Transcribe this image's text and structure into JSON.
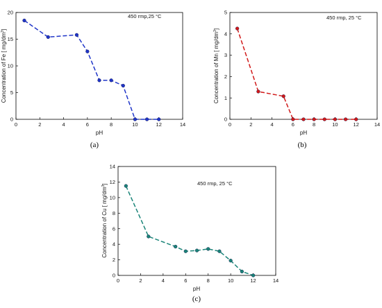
{
  "chart_data": [
    {
      "type": "line",
      "panel": "a",
      "caption": "(a)",
      "annotation": "450 rmp,25 °C",
      "xlabel": "pH",
      "ylabel_main": "Concentration of Fe [ mg/dm",
      "ylabel_sup": "3",
      "ylabel_end": "]",
      "xlim": [
        0,
        14
      ],
      "ylim": [
        0,
        20
      ],
      "xticks": [
        "0",
        "2",
        "4",
        "6",
        "8",
        "10",
        "12",
        "14"
      ],
      "yticks": [
        "0",
        "5",
        "10",
        "15",
        "20"
      ],
      "color": "#1f35c8",
      "series": [
        {
          "x": [
            0.7,
            2.7,
            5.1,
            6.0,
            7.0,
            8.0,
            9.0,
            10.0,
            11.0,
            12.0
          ],
          "y": [
            18.5,
            15.4,
            15.8,
            12.7,
            7.3,
            7.3,
            6.3,
            0.0,
            0.0,
            0.0
          ]
        }
      ]
    },
    {
      "type": "line",
      "panel": "b",
      "caption": "(b)",
      "annotation": "450 rmp, 25 °C",
      "xlabel": "pH",
      "ylabel_main": "Concentration of Mn [ mg/dm",
      "ylabel_sup": "3",
      "ylabel_end": "]",
      "xlim": [
        0,
        14
      ],
      "ylim": [
        0,
        5
      ],
      "xticks": [
        "0",
        "2",
        "4",
        "6",
        "8",
        "10",
        "12",
        "14"
      ],
      "yticks": [
        "0",
        "1",
        "2",
        "3",
        "4",
        "5"
      ],
      "color": "#d11919",
      "series": [
        {
          "x": [
            0.7,
            2.7,
            5.1,
            6.0,
            7.0,
            8.0,
            9.0,
            10.0,
            11.0,
            12.0
          ],
          "y": [
            4.25,
            1.3,
            1.08,
            0.0,
            0.0,
            0.0,
            0.0,
            0.0,
            0.0,
            0.0
          ]
        }
      ]
    },
    {
      "type": "line",
      "panel": "c",
      "caption": "(c)",
      "annotation": "450 rmp, 25 °C",
      "xlabel": "pH",
      "ylabel_main": "Concentration of Cu [ mg/dm",
      "ylabel_sup": "3",
      "ylabel_end": "]",
      "xlim": [
        0,
        14
      ],
      "ylim": [
        0,
        14
      ],
      "xticks": [
        "0",
        "2",
        "4",
        "6",
        "8",
        "10",
        "12",
        "14"
      ],
      "yticks": [
        "0",
        "2",
        "4",
        "6",
        "8",
        "10",
        "12",
        "14"
      ],
      "color": "#1a8478",
      "series": [
        {
          "x": [
            0.7,
            2.7,
            5.1,
            6.0,
            7.0,
            8.0,
            9.0,
            10.0,
            11.0,
            12.0
          ],
          "y": [
            11.5,
            5.0,
            3.7,
            3.1,
            3.2,
            3.4,
            3.1,
            1.9,
            0.5,
            0.0
          ]
        }
      ]
    }
  ]
}
